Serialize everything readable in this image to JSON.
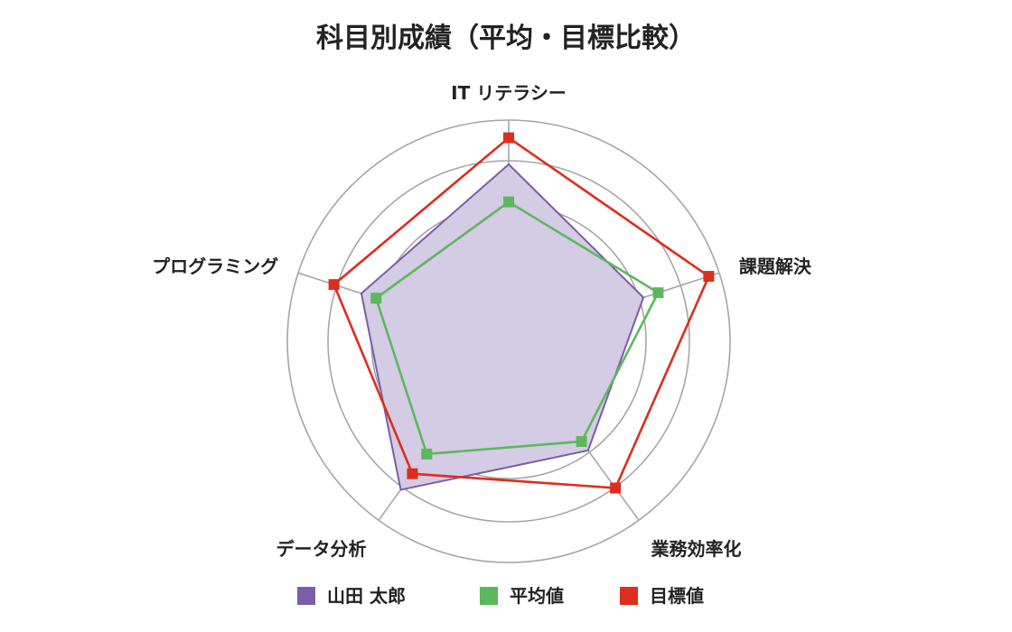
{
  "chart_data": {
    "type": "radar",
    "title": "科目別成績（平均・目標比較）",
    "categories": [
      "IT リテラシー",
      "課題解決",
      "業務効率化",
      "データ分析",
      "プログラミング"
    ],
    "rlim": [
      0,
      100
    ],
    "grid": true,
    "legend_position": "bottom",
    "series": [
      {
        "name": "山田 太郎",
        "values": [
          80,
          64,
          61,
          83,
          70
        ],
        "color": "#7b5ea7",
        "fill": "#d4cbe4",
        "marker": "none"
      },
      {
        "name": "平均値",
        "values": [
          63,
          71,
          56,
          63,
          63
        ],
        "color": "#5cb85c",
        "fill": "none",
        "marker": "square"
      },
      {
        "name": "目標値",
        "values": [
          92,
          95,
          82,
          74,
          83
        ],
        "color": "#dd2d1e",
        "fill": "none",
        "marker": "square"
      }
    ]
  }
}
